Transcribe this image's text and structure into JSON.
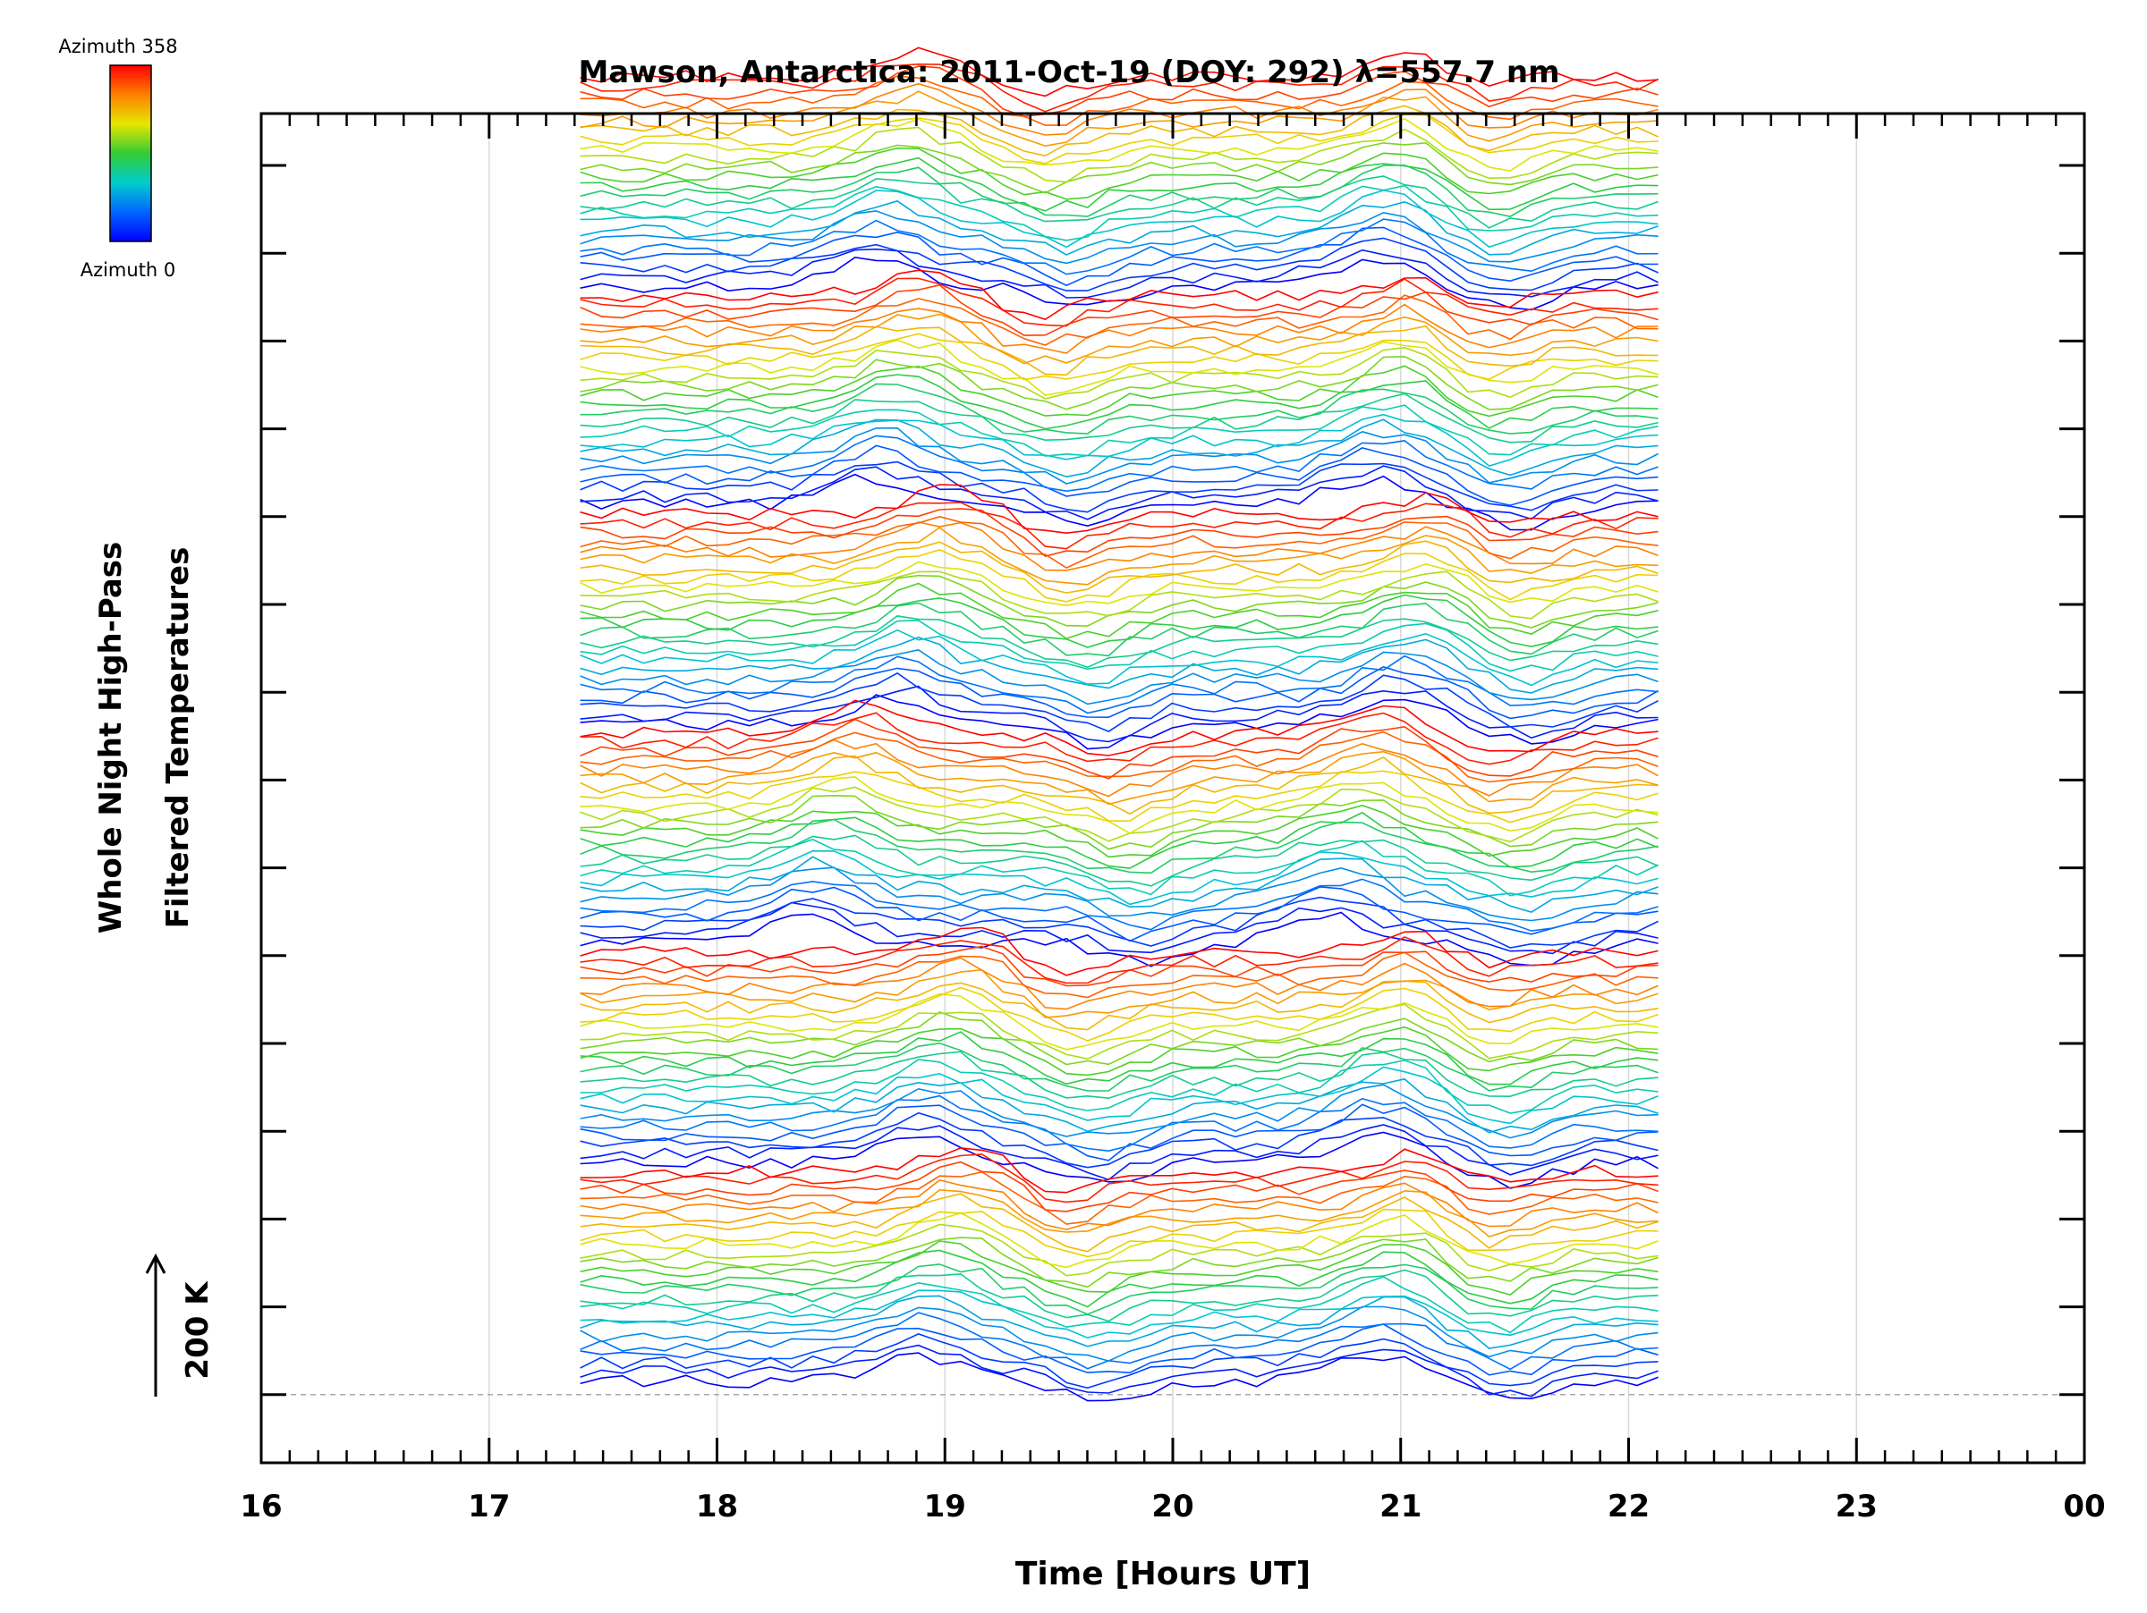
{
  "chart_data": {
    "type": "line",
    "title": "Mawson, Antarctica: 2011-Oct-19 (DOY: 292) λ=557.7 nm",
    "xlabel": "Time [Hours UT]",
    "ylabel_lines": [
      "Whole Night High-Pass",
      "Filtered Temperatures"
    ],
    "scale_label": "200 K",
    "x_range_hours": [
      16,
      24
    ],
    "x_tick_labels": [
      "16",
      "17",
      "18",
      "19",
      "20",
      "21",
      "22",
      "23",
      "00"
    ],
    "data_time_range_hours": [
      17.4,
      22.13
    ],
    "y_ticks_count": 15,
    "grid": true,
    "legend": {
      "placement": "top-left",
      "top_label": "Azimuth 358",
      "bottom_label": "Azimuth 0",
      "colormap": "rainbow",
      "colormap_stops": [
        "#ff0000",
        "#ff8000",
        "#e6e600",
        "#33cc33",
        "#00cccc",
        "#0066ff",
        "#0000ff"
      ]
    },
    "stacked_groups": 6,
    "series_per_group": 24,
    "time_steps": 52,
    "group_features": [
      {
        "group": 1,
        "dips_at_hours": [
          19.5,
          21.4
        ],
        "peaks_at_hours": [
          18.8,
          21.0
        ]
      },
      {
        "group": 2,
        "dips_at_hours": [
          19.5,
          21.4
        ],
        "peaks_at_hours": [
          18.8,
          21.0
        ]
      },
      {
        "group": 3,
        "dips_at_hours": [
          19.6,
          21.5
        ],
        "peaks_at_hours": [
          18.9,
          21.1
        ]
      },
      {
        "group": 4,
        "dips_at_hours": [
          19.8,
          21.5
        ],
        "peaks_at_hours": [
          18.5,
          20.8
        ]
      },
      {
        "group": 5,
        "dips_at_hours": [
          19.6,
          21.4
        ],
        "peaks_at_hours": [
          19.0,
          21.0
        ]
      },
      {
        "group": 6,
        "dips_at_hours": [
          19.6,
          21.4
        ],
        "peaks_at_hours": [
          19.0,
          21.0
        ]
      }
    ]
  }
}
